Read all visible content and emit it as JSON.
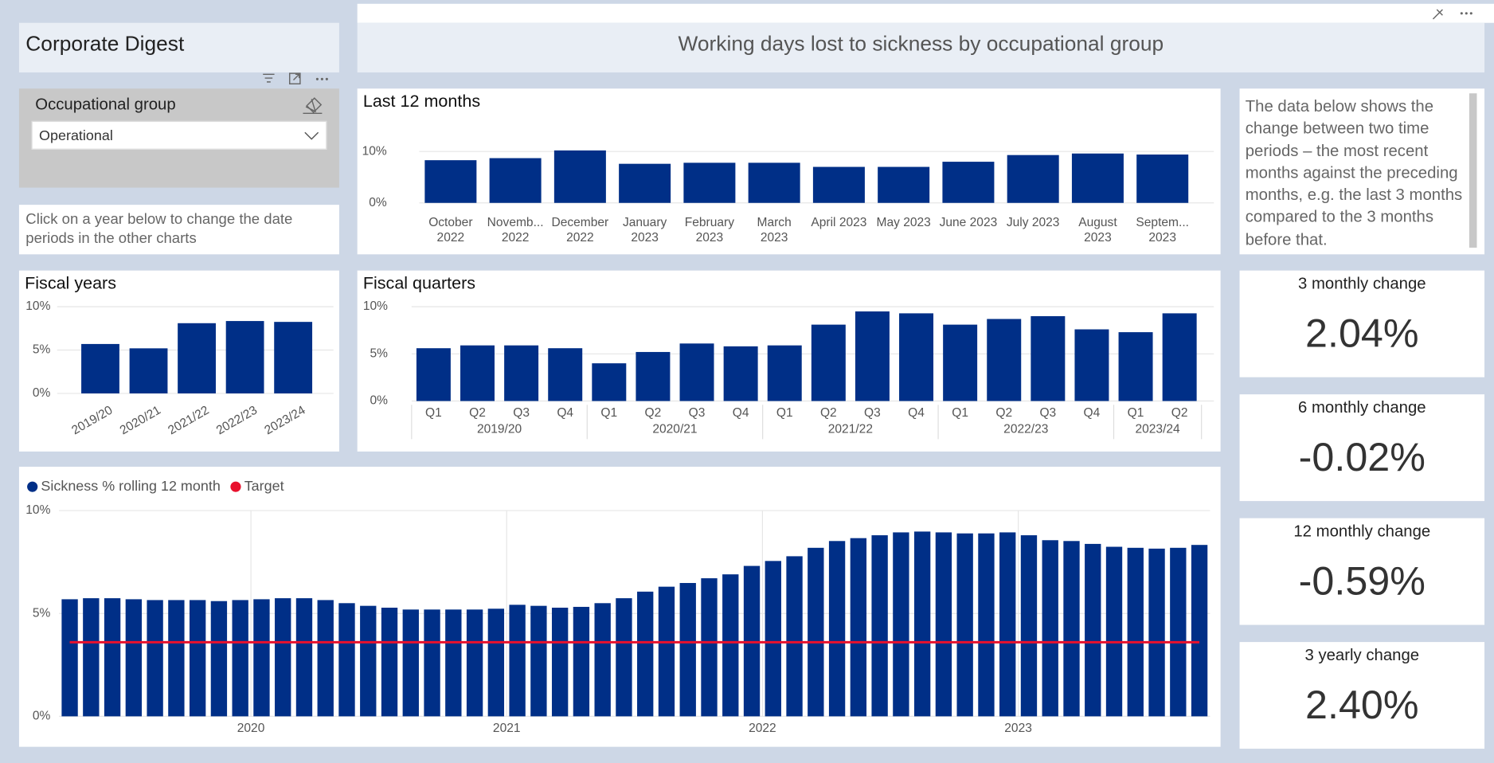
{
  "header": {
    "title": "Corporate Digest",
    "page_title": "Working days lost to sickness by occupational group"
  },
  "slicer": {
    "label": "Occupational group",
    "selected": "Operational"
  },
  "help_text": "Click on a year below to change the date periods in the other charts",
  "info_text": "The data below shows the change between two time periods – the most recent months against the preceding months, e.g. the last 3 months compared to the 3 months before that.",
  "cards": [
    {
      "label": "3 monthly change",
      "value": "2.04%"
    },
    {
      "label": "6 monthly change",
      "value": "-0.02%"
    },
    {
      "label": "12 monthly change",
      "value": "-0.59%"
    },
    {
      "label": "3 yearly change",
      "value": "2.40%"
    }
  ],
  "chart_data": [
    {
      "type": "bar",
      "title": "Last 12 months",
      "categories": [
        "October\n2022",
        "Novemb...\n2022",
        "December\n2022",
        "January\n2023",
        "February\n2023",
        "March\n2023",
        "April 2023",
        "May 2023",
        "June 2023",
        "July 2023",
        "August\n2023",
        "Septem...\n2023"
      ],
      "values": [
        8.3,
        8.7,
        10.2,
        7.6,
        7.8,
        7.8,
        7.0,
        7.0,
        8.0,
        9.3,
        9.6,
        9.4
      ],
      "color": "#002f87",
      "ylim": [
        0,
        11
      ],
      "yticks": [
        {
          "value": 0,
          "label": "0%"
        },
        {
          "value": 10,
          "label": "10%"
        }
      ],
      "grid": true
    },
    {
      "type": "bar",
      "title": "Fiscal years",
      "categories": [
        "2019/20",
        "2020/21",
        "2021/22",
        "2022/23",
        "2023/24"
      ],
      "values": [
        5.7,
        5.2,
        8.1,
        8.35,
        8.25
      ],
      "color": "#002f87",
      "ylim": [
        0,
        10
      ],
      "yticks": [
        {
          "value": 0,
          "label": "0%"
        },
        {
          "value": 5,
          "label": "5%"
        },
        {
          "value": 10,
          "label": "10%"
        }
      ],
      "grid": true
    },
    {
      "type": "bar",
      "title": "Fiscal quarters",
      "groups": [
        {
          "name": "2019/20",
          "categories": [
            "Q1",
            "Q2",
            "Q3",
            "Q4"
          ]
        },
        {
          "name": "2020/21",
          "categories": [
            "Q1",
            "Q2",
            "Q3",
            "Q4"
          ]
        },
        {
          "name": "2021/22",
          "categories": [
            "Q1",
            "Q2",
            "Q3",
            "Q4"
          ]
        },
        {
          "name": "2022/23",
          "categories": [
            "Q1",
            "Q2",
            "Q3",
            "Q4"
          ]
        },
        {
          "name": "2023/24",
          "categories": [
            "Q1",
            "Q2"
          ]
        }
      ],
      "values": [
        5.6,
        5.9,
        5.9,
        5.6,
        4.0,
        5.2,
        6.1,
        5.8,
        5.9,
        8.1,
        9.5,
        9.3,
        8.1,
        8.7,
        9.0,
        7.6,
        7.3,
        9.3
      ],
      "color": "#002f87",
      "ylim": [
        0,
        10
      ],
      "yticks": [
        {
          "value": 0,
          "label": "0%"
        },
        {
          "value": 5,
          "label": "5%"
        },
        {
          "value": 10,
          "label": "10%"
        }
      ],
      "grid": true
    },
    {
      "type": "bar",
      "legend": "top-left",
      "categories": [
        null,
        null,
        null,
        null,
        null,
        null,
        null,
        null,
        null,
        "2020",
        null,
        null,
        null,
        null,
        null,
        null,
        null,
        null,
        null,
        null,
        null,
        "2021",
        null,
        null,
        null,
        null,
        null,
        null,
        null,
        null,
        null,
        null,
        null,
        "2022",
        null,
        null,
        null,
        null,
        null,
        null,
        null,
        null,
        null,
        null,
        null,
        "2023",
        null,
        null,
        null,
        null,
        null,
        null,
        null,
        null
      ],
      "series": [
        {
          "name": "Sickness % rolling 12 month",
          "color": "#002f87",
          "values": [
            5.69,
            5.74,
            5.74,
            5.69,
            5.65,
            5.65,
            5.65,
            5.6,
            5.65,
            5.69,
            5.74,
            5.74,
            5.65,
            5.5,
            5.37,
            5.28,
            5.19,
            5.19,
            5.19,
            5.19,
            5.23,
            5.42,
            5.37,
            5.28,
            5.32,
            5.5,
            5.74,
            6.06,
            6.3,
            6.48,
            6.71,
            6.9,
            7.31,
            7.55,
            7.78,
            8.19,
            8.52,
            8.66,
            8.8,
            8.94,
            8.98,
            8.94,
            8.89,
            8.89,
            8.94,
            8.8,
            8.56,
            8.52,
            8.38,
            8.24,
            8.19,
            8.15,
            8.19,
            8.33
          ]
        },
        {
          "name": "Target",
          "color": "#e8112d",
          "type": "line",
          "values": [
            3.6,
            3.6,
            3.6,
            3.6,
            3.6,
            3.6,
            3.6,
            3.6,
            3.6,
            3.6,
            3.6,
            3.6,
            3.6,
            3.6,
            3.6,
            3.6,
            3.6,
            3.6,
            3.6,
            3.6,
            3.6,
            3.6,
            3.6,
            3.6,
            3.6,
            3.6,
            3.6,
            3.6,
            3.6,
            3.6,
            3.6,
            3.6,
            3.6,
            3.6,
            3.6,
            3.6,
            3.6,
            3.6,
            3.6,
            3.6,
            3.6,
            3.6,
            3.6,
            3.6,
            3.6,
            3.6,
            3.6,
            3.6,
            3.6,
            3.6,
            3.6,
            3.6,
            3.6,
            3.6
          ]
        }
      ],
      "ylim": [
        0,
        10
      ],
      "yticks": [
        {
          "value": 0,
          "label": "0%"
        },
        {
          "value": 5,
          "label": "5%"
        },
        {
          "value": 10,
          "label": "10%"
        }
      ],
      "grid": true
    }
  ]
}
